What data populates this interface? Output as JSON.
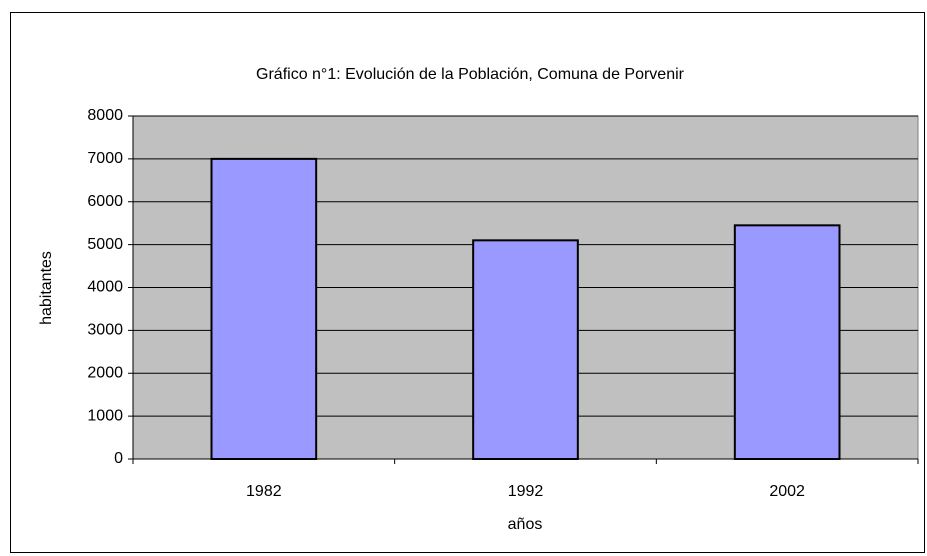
{
  "chart_data": {
    "type": "bar",
    "title": "Gráfico n°1: Evolución de la Población, Comuna de Porvenir",
    "x_label": "años",
    "y_label": "habitantes",
    "categories": [
      "1982",
      "1992",
      "2002"
    ],
    "values": [
      7000,
      5100,
      5450
    ],
    "color": "#9999ff",
    "ylim": [
      0,
      8000
    ],
    "yticks": [
      0,
      1000,
      2000,
      3000,
      4000,
      5000,
      6000,
      7000,
      8000
    ],
    "grid": true
  }
}
